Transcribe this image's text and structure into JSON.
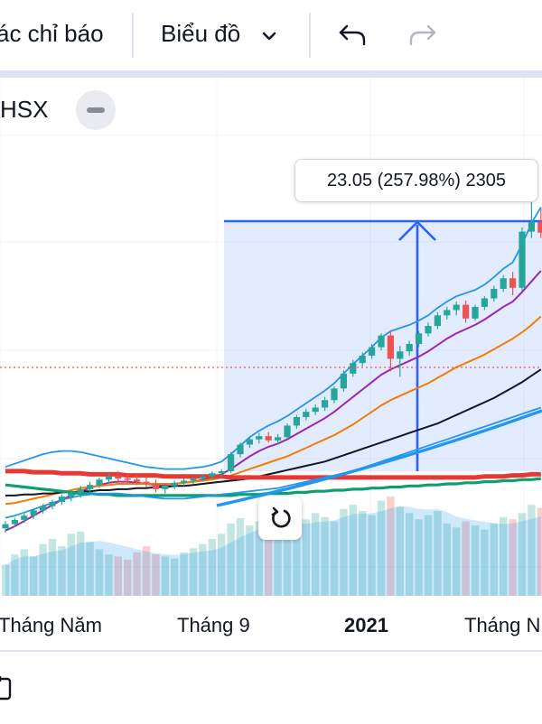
{
  "toolbar": {
    "indicators_label": "ác chỉ báo",
    "chart_label": "Biểu đồ",
    "undo_icon": "undo-arrow-icon",
    "redo_icon": "redo-arrow-icon"
  },
  "legend": {
    "symbol": "HSX"
  },
  "measure_tooltip": {
    "text": "23.05 (257.98%) 2305"
  },
  "xaxis": {
    "labels": [
      "Tháng Năm",
      "Tháng 9",
      "2021",
      "Tháng N"
    ]
  },
  "colors": {
    "up": "#26a69a",
    "down": "#ef5350",
    "measure": "#2962ff",
    "ma_fast": "#9c27b0",
    "ma_mid": "#f57c00",
    "ma_slow": "#131722",
    "ma_support": "#e53935",
    "ma_long": "#0e9f6e",
    "bollinger": "#2196f3"
  },
  "chart_data": {
    "type": "candlestick",
    "x_ticks": [
      "Tháng Năm",
      "Tháng 9",
      "2021",
      "Tháng N"
    ],
    "measure": {
      "change": 23.05,
      "percent": 257.98,
      "ticks": 2305
    },
    "candles": [
      {
        "o": 6.2,
        "h": 6.9,
        "l": 5.8,
        "c": 6.6
      },
      {
        "o": 6.6,
        "h": 7.2,
        "l": 6.3,
        "c": 7.0
      },
      {
        "o": 7.0,
        "h": 7.6,
        "l": 6.7,
        "c": 7.4
      },
      {
        "o": 7.4,
        "h": 8.1,
        "l": 7.1,
        "c": 7.9
      },
      {
        "o": 7.9,
        "h": 8.5,
        "l": 7.6,
        "c": 8.3
      },
      {
        "o": 8.3,
        "h": 8.9,
        "l": 8.0,
        "c": 8.7
      },
      {
        "o": 8.7,
        "h": 9.4,
        "l": 8.4,
        "c": 9.2
      },
      {
        "o": 9.2,
        "h": 9.8,
        "l": 8.8,
        "c": 9.5
      },
      {
        "o": 9.5,
        "h": 10.2,
        "l": 9.1,
        "c": 9.9
      },
      {
        "o": 9.9,
        "h": 10.6,
        "l": 9.6,
        "c": 10.3
      },
      {
        "o": 10.3,
        "h": 11.0,
        "l": 10.0,
        "c": 10.8
      },
      {
        "o": 10.8,
        "h": 11.4,
        "l": 10.4,
        "c": 11.1
      },
      {
        "o": 11.1,
        "h": 11.6,
        "l": 10.6,
        "c": 10.9
      },
      {
        "o": 10.9,
        "h": 11.3,
        "l": 10.5,
        "c": 10.8
      },
      {
        "o": 10.8,
        "h": 11.2,
        "l": 10.3,
        "c": 10.6
      },
      {
        "o": 10.6,
        "h": 11.0,
        "l": 10.1,
        "c": 10.4
      },
      {
        "o": 10.4,
        "h": 10.8,
        "l": 9.6,
        "c": 9.9
      },
      {
        "o": 9.9,
        "h": 10.4,
        "l": 9.5,
        "c": 10.2
      },
      {
        "o": 10.2,
        "h": 10.7,
        "l": 9.9,
        "c": 10.5
      },
      {
        "o": 10.5,
        "h": 10.9,
        "l": 10.2,
        "c": 10.7
      },
      {
        "o": 10.7,
        "h": 11.1,
        "l": 10.4,
        "c": 10.9
      },
      {
        "o": 10.9,
        "h": 11.3,
        "l": 10.6,
        "c": 11.1
      },
      {
        "o": 11.1,
        "h": 11.6,
        "l": 10.8,
        "c": 11.4
      },
      {
        "o": 11.4,
        "h": 11.8,
        "l": 11.0,
        "c": 11.6
      },
      {
        "o": 11.6,
        "h": 13.4,
        "l": 11.4,
        "c": 13.2
      },
      {
        "o": 13.2,
        "h": 14.3,
        "l": 12.9,
        "c": 14.1
      },
      {
        "o": 14.1,
        "h": 14.8,
        "l": 13.8,
        "c": 14.6
      },
      {
        "o": 14.6,
        "h": 15.2,
        "l": 14.2,
        "c": 14.9
      },
      {
        "o": 14.9,
        "h": 15.3,
        "l": 14.3,
        "c": 14.5
      },
      {
        "o": 14.5,
        "h": 15.1,
        "l": 14.1,
        "c": 14.8
      },
      {
        "o": 14.8,
        "h": 16.1,
        "l": 14.6,
        "c": 15.9
      },
      {
        "o": 15.9,
        "h": 16.9,
        "l": 15.6,
        "c": 16.7
      },
      {
        "o": 16.7,
        "h": 17.5,
        "l": 16.4,
        "c": 17.2
      },
      {
        "o": 17.2,
        "h": 17.9,
        "l": 16.9,
        "c": 17.6
      },
      {
        "o": 17.6,
        "h": 18.6,
        "l": 17.3,
        "c": 18.3
      },
      {
        "o": 18.3,
        "h": 19.6,
        "l": 18.0,
        "c": 19.4
      },
      {
        "o": 19.4,
        "h": 21.1,
        "l": 19.1,
        "c": 20.8
      },
      {
        "o": 20.8,
        "h": 22.1,
        "l": 20.5,
        "c": 21.8
      },
      {
        "o": 21.8,
        "h": 22.8,
        "l": 21.5,
        "c": 22.5
      },
      {
        "o": 22.5,
        "h": 23.6,
        "l": 22.2,
        "c": 23.3
      },
      {
        "o": 23.3,
        "h": 24.6,
        "l": 23.0,
        "c": 24.4
      },
      {
        "o": 24.4,
        "h": 24.9,
        "l": 21.0,
        "c": 22.2
      },
      {
        "o": 22.2,
        "h": 23.4,
        "l": 20.5,
        "c": 22.9
      },
      {
        "o": 22.9,
        "h": 23.9,
        "l": 22.5,
        "c": 23.6
      },
      {
        "o": 23.6,
        "h": 24.8,
        "l": 23.3,
        "c": 24.6
      },
      {
        "o": 24.6,
        "h": 25.6,
        "l": 24.3,
        "c": 25.3
      },
      {
        "o": 25.3,
        "h": 26.6,
        "l": 25.0,
        "c": 26.3
      },
      {
        "o": 26.3,
        "h": 27.1,
        "l": 25.9,
        "c": 26.8
      },
      {
        "o": 26.8,
        "h": 27.6,
        "l": 26.3,
        "c": 27.3
      },
      {
        "o": 27.3,
        "h": 27.7,
        "l": 25.6,
        "c": 26.0
      },
      {
        "o": 26.0,
        "h": 27.3,
        "l": 25.8,
        "c": 27.1
      },
      {
        "o": 27.1,
        "h": 28.1,
        "l": 26.8,
        "c": 27.9
      },
      {
        "o": 27.9,
        "h": 29.1,
        "l": 27.6,
        "c": 28.8
      },
      {
        "o": 28.8,
        "h": 30.1,
        "l": 28.5,
        "c": 29.8
      },
      {
        "o": 29.8,
        "h": 30.4,
        "l": 28.2,
        "c": 28.9
      },
      {
        "o": 28.9,
        "h": 34.6,
        "l": 28.6,
        "c": 34.2
      },
      {
        "o": 34.2,
        "h": 37.2,
        "l": 33.6,
        "c": 35.1
      },
      {
        "o": 35.1,
        "h": 36.4,
        "l": 33.6,
        "c": 34.1
      }
    ],
    "volumes": [
      30,
      40,
      45,
      38,
      50,
      55,
      48,
      60,
      62,
      52,
      45,
      40,
      38,
      35,
      42,
      48,
      40,
      38,
      36,
      42,
      46,
      50,
      55,
      60,
      70,
      75,
      68,
      72,
      64,
      60,
      70,
      78,
      74,
      80,
      76,
      72,
      84,
      88,
      82,
      78,
      92,
      96,
      86,
      80,
      74,
      78,
      82,
      70,
      66,
      72,
      68,
      64,
      70,
      76,
      74,
      80,
      88,
      85
    ],
    "moving_averages": [
      {
        "key": "ma_fast",
        "y": [
          6.0,
          6.4,
          6.9,
          7.4,
          7.9,
          8.4,
          8.9,
          9.3,
          9.7,
          10.0,
          10.3,
          10.5,
          10.6,
          10.6,
          10.5,
          10.4,
          10.3,
          10.3,
          10.4,
          10.5,
          10.6,
          10.8,
          11.0,
          11.3,
          11.8,
          12.4,
          13.0,
          13.5,
          13.9,
          14.2,
          14.6,
          15.1,
          15.6,
          16.1,
          16.6,
          17.2,
          17.9,
          18.6,
          19.3,
          20.0,
          20.7,
          21.2,
          21.6,
          22.0,
          22.4,
          22.9,
          23.5,
          24.1,
          24.6,
          25.0,
          25.4,
          25.9,
          26.5,
          27.1,
          27.6,
          28.5,
          29.5,
          30.5
        ]
      },
      {
        "key": "ma_mid",
        "y": [
          8.5,
          8.6,
          8.8,
          9.0,
          9.2,
          9.4,
          9.6,
          9.8,
          10.0,
          10.1,
          10.2,
          10.3,
          10.4,
          10.4,
          10.4,
          10.4,
          10.4,
          10.4,
          10.4,
          10.5,
          10.6,
          10.7,
          10.8,
          11.0,
          11.2,
          11.5,
          11.8,
          12.1,
          12.4,
          12.7,
          13.0,
          13.4,
          13.8,
          14.2,
          14.6,
          15.0,
          15.5,
          16.0,
          16.6,
          17.2,
          17.8,
          18.3,
          18.7,
          19.1,
          19.5,
          19.9,
          20.4,
          20.9,
          21.4,
          21.8,
          22.2,
          22.6,
          23.1,
          23.6,
          24.1,
          24.7,
          25.4,
          26.2
        ]
      },
      {
        "key": "ma_slow",
        "y": [
          9.3,
          9.3,
          9.4,
          9.4,
          9.5,
          9.5,
          9.6,
          9.6,
          9.7,
          9.7,
          9.8,
          9.8,
          9.9,
          9.9,
          10.0,
          10.0,
          10.1,
          10.1,
          10.2,
          10.2,
          10.3,
          10.4,
          10.5,
          10.6,
          10.7,
          10.8,
          10.9,
          11.1,
          11.3,
          11.5,
          11.7,
          11.9,
          12.1,
          12.3,
          12.5,
          12.8,
          13.1,
          13.4,
          13.7,
          14.0,
          14.3,
          14.6,
          14.9,
          15.2,
          15.5,
          15.8,
          16.1,
          16.5,
          16.9,
          17.3,
          17.7,
          18.1,
          18.5,
          19.0,
          19.5,
          20.0,
          20.6,
          21.2
        ]
      },
      {
        "key": "ma_support",
        "y": [
          11.6,
          11.6,
          11.6,
          11.5,
          11.5,
          11.5,
          11.4,
          11.4,
          11.4,
          11.3,
          11.3,
          11.3,
          11.3,
          11.2,
          11.2,
          11.2,
          11.2,
          11.1,
          11.1,
          11.1,
          11.1,
          11.1,
          11.1,
          11.1,
          11.0,
          11.0,
          11.0,
          11.0,
          11.0,
          11.0,
          11.0,
          11.0,
          11.0,
          11.0,
          11.0,
          11.0,
          11.0,
          11.0,
          11.0,
          11.0,
          11.0,
          11.0,
          11.0,
          11.0,
          11.0,
          11.0,
          11.0,
          11.0,
          11.0,
          11.0,
          11.0,
          11.1,
          11.1,
          11.1,
          11.2,
          11.2,
          11.3,
          11.3
        ]
      },
      {
        "key": "ma_long",
        "y": [
          10.3,
          10.2,
          10.1,
          10.0,
          9.9,
          9.8,
          9.7,
          9.6,
          9.5,
          9.5,
          9.4,
          9.4,
          9.3,
          9.3,
          9.3,
          9.3,
          9.3,
          9.3,
          9.3,
          9.3,
          9.3,
          9.3,
          9.3,
          9.3,
          9.3,
          9.4,
          9.4,
          9.4,
          9.5,
          9.5,
          9.5,
          9.6,
          9.6,
          9.7,
          9.7,
          9.8,
          9.8,
          9.9,
          9.9,
          10.0,
          10.0,
          10.1,
          10.1,
          10.2,
          10.2,
          10.3,
          10.3,
          10.4,
          10.4,
          10.5,
          10.5,
          10.6,
          10.6,
          10.7,
          10.7,
          10.8,
          10.8,
          10.9
        ]
      },
      {
        "key": "bollinger",
        "y": [
          7.2,
          7.4,
          7.7,
          8.0,
          8.3,
          8.6,
          8.9,
          9.1,
          9.3,
          9.4,
          9.5,
          9.5,
          9.5,
          9.4,
          9.3,
          9.2,
          9.1,
          9.0,
          9.0,
          9.0,
          9.1,
          9.2,
          9.3,
          9.4,
          9.5,
          9.6,
          9.7,
          9.8,
          9.9,
          10.0,
          10.2,
          10.4,
          10.6,
          10.8,
          11.0,
          11.2,
          11.4,
          11.6,
          11.9,
          12.2,
          12.5,
          12.8,
          13.1,
          13.4,
          13.7,
          14.0,
          14.3,
          14.6,
          14.9,
          15.2,
          15.5,
          15.8,
          16.1,
          16.4,
          16.7,
          17.0,
          17.3,
          17.6
        ]
      },
      {
        "key": "bollinger",
        "y": [
          12.0,
          12.3,
          12.6,
          12.9,
          13.2,
          13.4,
          13.5,
          13.5,
          13.4,
          13.2,
          13.0,
          12.8,
          12.6,
          12.4,
          12.2,
          12.0,
          11.9,
          11.8,
          11.8,
          11.8,
          11.9,
          12.0,
          12.2,
          12.5,
          13.2,
          14.0,
          14.8,
          15.4,
          15.9,
          16.3,
          16.8,
          17.4,
          18.0,
          18.6,
          19.2,
          19.9,
          20.8,
          21.7,
          22.5,
          23.3,
          24.2,
          24.8,
          25.1,
          25.4,
          25.8,
          26.3,
          27.0,
          27.6,
          28.1,
          28.4,
          28.7,
          29.2,
          29.9,
          30.7,
          31.3,
          33.0,
          35.0,
          36.5
        ]
      }
    ]
  }
}
